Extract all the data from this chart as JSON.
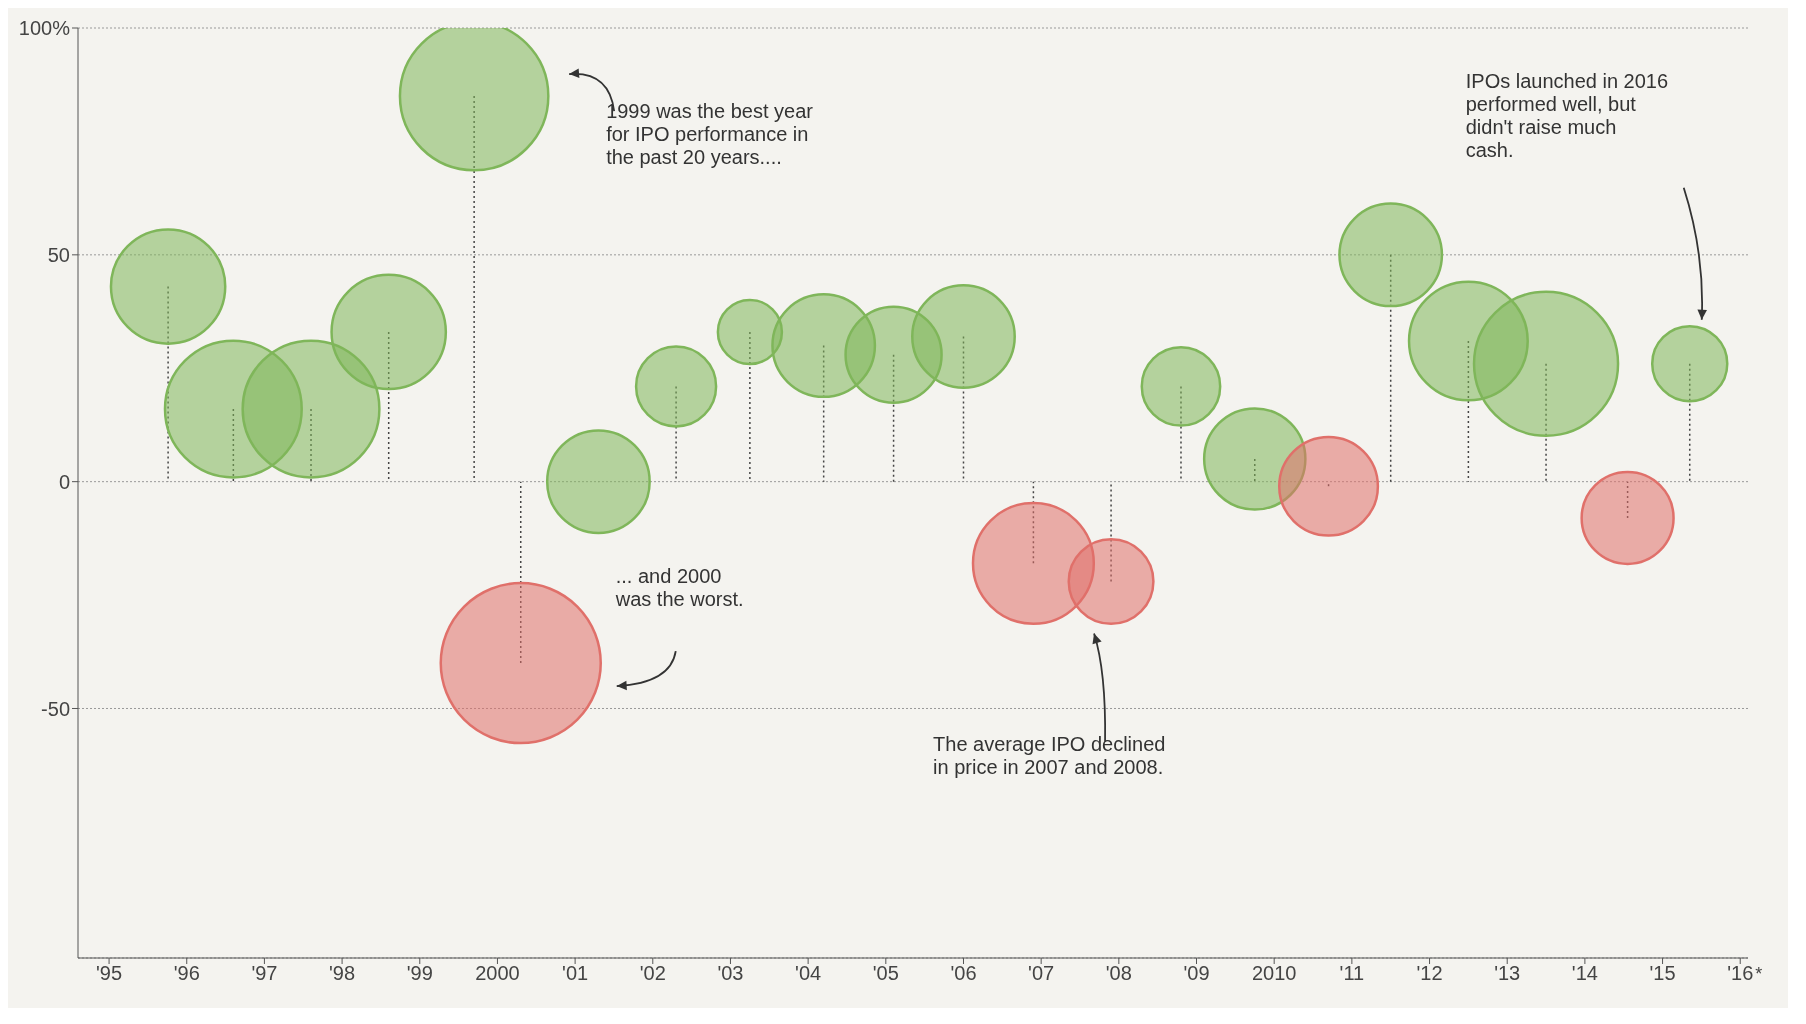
{
  "chart_data": {
    "type": "lollipop",
    "relative": false,
    "x": [
      1995.76,
      1996.6,
      1997.6,
      1998.6,
      1999.7,
      2000.3,
      2001.3,
      2002.3,
      2003.25,
      2004.2,
      2005.1,
      2006.0,
      2006.9,
      2007.9,
      2008.8,
      2009.75,
      2010.7,
      2011.5,
      2012.5,
      2013.5,
      2014.55,
      2015.35
    ],
    "values": [
      43,
      16,
      16,
      33,
      85,
      -40,
      0,
      21,
      33,
      30,
      28,
      32,
      -18,
      -22,
      21,
      5,
      -1,
      50,
      31,
      26,
      -8,
      26
    ],
    "sizes": [
      0.51,
      0.73,
      0.73,
      0.51,
      0.86,
      1,
      0.41,
      0.25,
      0.16,
      0.41,
      0.36,
      0.41,
      0.57,
      0.28,
      0.24,
      0.4,
      0.38,
      0.41,
      0.55,
      0.81,
      0.33,
      0.22
    ],
    "colors": [
      "#7fb65a",
      "#7fb65a",
      "#7fb65a",
      "#7fb65a",
      "#7fb65a",
      "#e0706a",
      "#7fb65a",
      "#7fb65a",
      "#7fb65a",
      "#7fb65a",
      "#7fb65a",
      "#7fb65a",
      "#e0706a",
      "#e0706a",
      "#7fb65a",
      "#7fb65a",
      "#e0706a",
      "#7fb65a",
      "#7fb65a",
      "#7fb65a",
      "#e0706a",
      "#7fb65a"
    ],
    "xlim": [
      1994.6,
      2016.1
    ],
    "xticks": [
      {
        "value": 1995,
        "label": "'95"
      },
      {
        "value": 1996,
        "label": "'96"
      },
      {
        "value": 1997,
        "label": "'97"
      },
      {
        "value": 1998,
        "label": "'98"
      },
      {
        "value": 1999,
        "label": "'99"
      },
      2000,
      {
        "value": 2001,
        "label": "'01"
      },
      {
        "value": 2002,
        "label": "'02"
      },
      {
        "value": 2003,
        "label": "'03"
      },
      {
        "value": 2004,
        "label": "'04"
      },
      {
        "value": 2005,
        "label": "'05"
      },
      {
        "value": 2006,
        "label": "'06"
      },
      {
        "value": 2007,
        "label": "'07"
      },
      {
        "value": 2008,
        "label": "'08"
      },
      {
        "value": 2009,
        "label": "'09"
      },
      2010,
      {
        "value": 2011,
        "label": "'11"
      },
      {
        "value": 2012,
        "label": "'12"
      },
      {
        "value": 2013,
        "label": "'13"
      },
      {
        "value": 2014,
        "label": "'14"
      },
      {
        "value": 2015,
        "label": "'15"
      },
      {
        "value": 2016,
        "label": "'16"
      }
    ],
    "ylim": [
      -105,
      100
    ],
    "yticks": [
      -50,
      0,
      50,
      {
        "value": 100,
        "label": "100%"
      }
    ],
    "grid": "y",
    "legend": false,
    "annotations": [
      "1999 was the best year for IPO performance in the past 20 years....",
      "... and 2000 was the worst.",
      "The average IPO declined in price in 2007 and 2008.",
      "IPOs launched in 2016 performed well, but didn't raise much cash.",
      "*"
    ]
  }
}
